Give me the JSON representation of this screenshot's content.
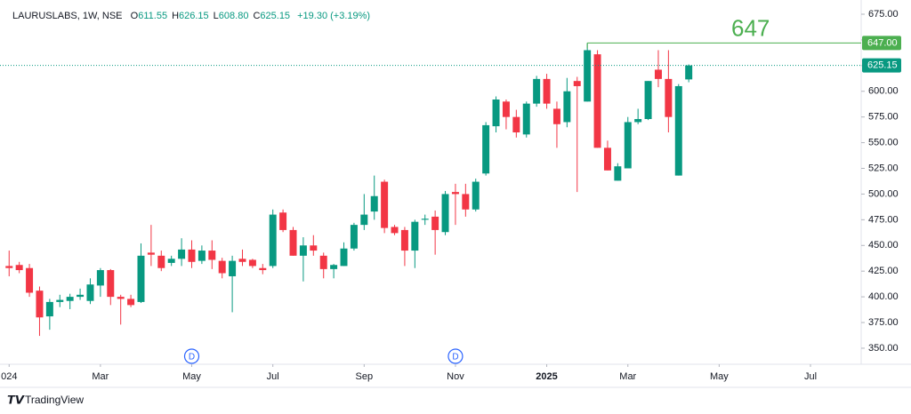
{
  "chart_data": {
    "type": "candlestick",
    "header": {
      "symbol": "LAURUSLABS, 1W, NSE",
      "ohlc": [
        {
          "key": "O",
          "value": "611.55"
        },
        {
          "key": "H",
          "value": "626.15"
        },
        {
          "key": "L",
          "value": "608.80"
        },
        {
          "key": "C",
          "value": "625.15"
        }
      ],
      "change": "+19.30 (+3.19%)"
    },
    "open": [
      430,
      431,
      428,
      406,
      381,
      395,
      396,
      400,
      396,
      411,
      426,
      400,
      398,
      395,
      443,
      440,
      433,
      437,
      446,
      435,
      445,
      435,
      420,
      437,
      436,
      428,
      430,
      482,
      465,
      440,
      450,
      440,
      427,
      430,
      447,
      470,
      483,
      512,
      468,
      465,
      445,
      475,
      478,
      463,
      502,
      500,
      485,
      520,
      566,
      590,
      575,
      558,
      588,
      612,
      583,
      570,
      610,
      590,
      636,
      545,
      513,
      525,
      570,
      573,
      621,
      612,
      518,
      611.55
    ],
    "high": [
      445,
      434,
      432,
      410,
      398,
      402,
      403,
      408,
      418,
      428,
      427,
      402,
      402,
      452,
      470,
      445,
      440,
      457,
      455,
      450,
      455,
      438,
      440,
      446,
      437,
      432,
      485,
      485,
      468,
      458,
      460,
      443,
      432,
      453,
      472,
      500,
      518,
      514,
      470,
      468,
      475,
      480,
      484,
      503,
      510,
      510,
      515,
      570,
      595,
      592,
      582,
      590,
      615,
      617,
      590,
      613,
      614,
      647,
      640,
      552,
      530,
      575,
      583,
      610,
      640,
      640,
      607,
      626.15
    ],
    "low": [
      420,
      423,
      400,
      362,
      368,
      390,
      388,
      397,
      393,
      400,
      392,
      373,
      390,
      394,
      430,
      425,
      430,
      430,
      428,
      432,
      427,
      418,
      385,
      430,
      428,
      422,
      428,
      463,
      440,
      415,
      440,
      418,
      418,
      430,
      445,
      465,
      475,
      462,
      460,
      430,
      428,
      470,
      441,
      460,
      470,
      478,
      483,
      518,
      560,
      563,
      555,
      555,
      585,
      583,
      545,
      565,
      502,
      590,
      545,
      523,
      513,
      525,
      568,
      572,
      604,
      560,
      518,
      608.8
    ],
    "close": [
      428,
      426,
      404,
      380,
      395,
      397,
      400,
      402,
      412,
      426,
      400,
      398,
      392,
      440,
      441,
      428,
      437,
      446,
      434,
      445,
      436,
      423,
      435,
      434,
      430,
      426,
      480,
      465,
      440,
      450,
      445,
      427,
      431,
      447,
      470,
      480,
      498,
      467,
      462,
      445,
      473,
      476,
      465,
      500,
      500,
      485,
      512,
      567,
      592,
      575,
      560,
      588,
      612,
      588,
      568,
      600,
      605,
      640,
      545,
      523,
      527,
      570,
      573,
      610,
      612,
      575,
      605,
      625.15
    ],
    "up_color": "#089981",
    "down_color": "#f23645",
    "xlim": [
      -0.9,
      84
    ],
    "xticks": [
      {
        "value": 0,
        "label": "024"
      },
      {
        "value": 9,
        "label": "Mar"
      },
      {
        "value": 18,
        "label": "May"
      },
      {
        "value": 26,
        "label": "Jul"
      },
      {
        "value": 35,
        "label": "Sep"
      },
      {
        "value": 44,
        "label": "Nov"
      },
      {
        "value": 53,
        "label": "2025"
      },
      {
        "value": 61,
        "label": "Mar"
      },
      {
        "value": 70,
        "label": "May"
      },
      {
        "value": 79,
        "label": "Jul"
      }
    ],
    "ylim": [
      334.4,
      684.5
    ],
    "yticks": [
      {
        "value": 350,
        "label": "350.00"
      },
      {
        "value": 375,
        "label": "375.00"
      },
      {
        "value": 400,
        "label": "400.00"
      },
      {
        "value": 425,
        "label": "425.00"
      },
      {
        "value": 450,
        "label": "450.00"
      },
      {
        "value": 475,
        "label": "475.00"
      },
      {
        "value": 500,
        "label": "500.00"
      },
      {
        "value": 525,
        "label": "525.00"
      },
      {
        "value": 550,
        "label": "550.00"
      },
      {
        "value": 575,
        "label": "575.00"
      },
      {
        "value": 600,
        "label": "600.00"
      },
      {
        "value": 625,
        "label": "625.00"
      },
      {
        "value": 650,
        "label": "650.00"
      },
      {
        "value": 675,
        "label": "675.00"
      }
    ],
    "grid": false,
    "price_lines": [
      {
        "value": 647,
        "label": "647.00",
        "annotation": "647",
        "color": "#4caf50",
        "style": "solid"
      },
      {
        "value": 625.15,
        "label": "625.15",
        "color": "#089981",
        "style": "dotted"
      }
    ],
    "events": [
      {
        "x": 18,
        "label": "D"
      },
      {
        "x": 44,
        "label": "D"
      }
    ],
    "branding": "TradingView"
  }
}
